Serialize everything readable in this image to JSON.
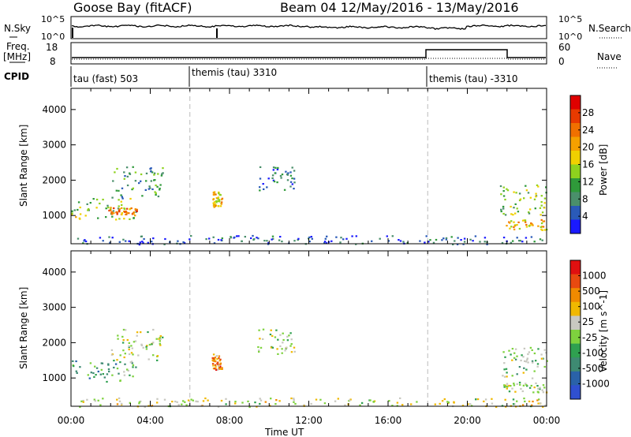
{
  "header": {
    "station": "Goose Bay (fitACF)",
    "beam_date": "Beam 04 12/May/2016 - 13/May/2016"
  },
  "noise_panel": {
    "left_label": "N.Sky",
    "left_ticks": [
      "10^5",
      "10^0"
    ],
    "right_label": "N.Search",
    "right_ticks": [
      "10^5",
      "10^0"
    ]
  },
  "freq_panel": {
    "left_label_1": "Freq.",
    "left_label_2": "[MHz]",
    "left_ticks": [
      "18",
      "8"
    ],
    "right_label": "Nave",
    "right_ticks": [
      "60",
      "0"
    ]
  },
  "cpid": {
    "label": "CPID",
    "modes": [
      {
        "text": "tau (fast) 503",
        "start_hour": 0
      },
      {
        "text": "themis (tau) 3310",
        "start_hour": 6
      },
      {
        "text": "themis (tau) -3310",
        "start_hour": 18
      }
    ]
  },
  "colors": {
    "power": [
      "#1a1aff",
      "#2a5ab8",
      "#4a8f6b",
      "#2f9a3a",
      "#8ed21e",
      "#f0d000",
      "#f5a000",
      "#f07000",
      "#e83a00",
      "#e00000"
    ],
    "velocity": [
      "#3050d0",
      "#2a62a8",
      "#3e8a72",
      "#2fa050",
      "#7ed23e",
      "#c8c8c0",
      "#f0b800",
      "#f08a00",
      "#e84a10",
      "#e01010"
    ]
  },
  "chart_data": [
    {
      "type": "heatmap",
      "name": "Power",
      "ylabel": "Slant Range [km]",
      "y_ticks": [
        1000,
        2000,
        3000,
        4000
      ],
      "ylim": [
        200,
        4600
      ],
      "xlim": [
        0,
        24
      ],
      "colorbar": {
        "label": "Power [dB]",
        "ticks": [
          "4",
          "8",
          "12",
          "16",
          "20",
          "24",
          "28"
        ],
        "range": [
          0,
          30
        ]
      },
      "patches": [
        {
          "t": [
            0.0,
            3.3
          ],
          "r": [
            900,
            1500
          ],
          "level": 0.45
        },
        {
          "t": [
            1.8,
            3.3
          ],
          "r": [
            1050,
            1250
          ],
          "level": 0.75
        },
        {
          "t": [
            2.0,
            4.6
          ],
          "r": [
            1500,
            2400
          ],
          "level": 0.3
        },
        {
          "t": [
            7.1,
            7.6
          ],
          "r": [
            1250,
            1700
          ],
          "level": 0.55
        },
        {
          "t": [
            9.4,
            11.3
          ],
          "r": [
            1700,
            2400
          ],
          "level": 0.2
        },
        {
          "t": [
            21.6,
            24.0
          ],
          "r": [
            1000,
            1900
          ],
          "level": 0.4
        },
        {
          "t": [
            21.8,
            24.0
          ],
          "r": [
            600,
            900
          ],
          "level": 0.6
        },
        {
          "t": [
            0.2,
            24.0
          ],
          "r": [
            200,
            450
          ],
          "level": 0.15
        }
      ]
    },
    {
      "type": "heatmap",
      "name": "Velocity",
      "ylabel": "Slant Range [km]",
      "xlabel": "Time UT",
      "x_ticks": [
        "00:00",
        "04:00",
        "08:00",
        "12:00",
        "16:00",
        "20:00",
        "00:00"
      ],
      "y_ticks": [
        1000,
        2000,
        3000,
        4000
      ],
      "ylim": [
        200,
        4600
      ],
      "xlim": [
        0,
        24
      ],
      "colorbar": {
        "label": "Velocity [m s^-1]",
        "ticks": [
          "1000",
          "500",
          "100",
          "25",
          "-25",
          "-100",
          "-500",
          "-1000"
        ]
      },
      "patches": [
        {
          "t": [
            0.0,
            3.3
          ],
          "r": [
            900,
            1500
          ],
          "level": 0.35
        },
        {
          "t": [
            2.0,
            4.6
          ],
          "r": [
            1500,
            2400
          ],
          "level": 0.5
        },
        {
          "t": [
            7.1,
            7.6
          ],
          "r": [
            1250,
            1700
          ],
          "level": 0.75
        },
        {
          "t": [
            9.4,
            11.3
          ],
          "r": [
            1700,
            2400
          ],
          "level": 0.5
        },
        {
          "t": [
            21.6,
            24.0
          ],
          "r": [
            1000,
            1900
          ],
          "level": 0.45
        },
        {
          "t": [
            21.8,
            24.0
          ],
          "r": [
            600,
            900
          ],
          "level": 0.5
        },
        {
          "t": [
            0.2,
            24.0
          ],
          "r": [
            200,
            450
          ],
          "level": 0.55
        }
      ]
    }
  ]
}
